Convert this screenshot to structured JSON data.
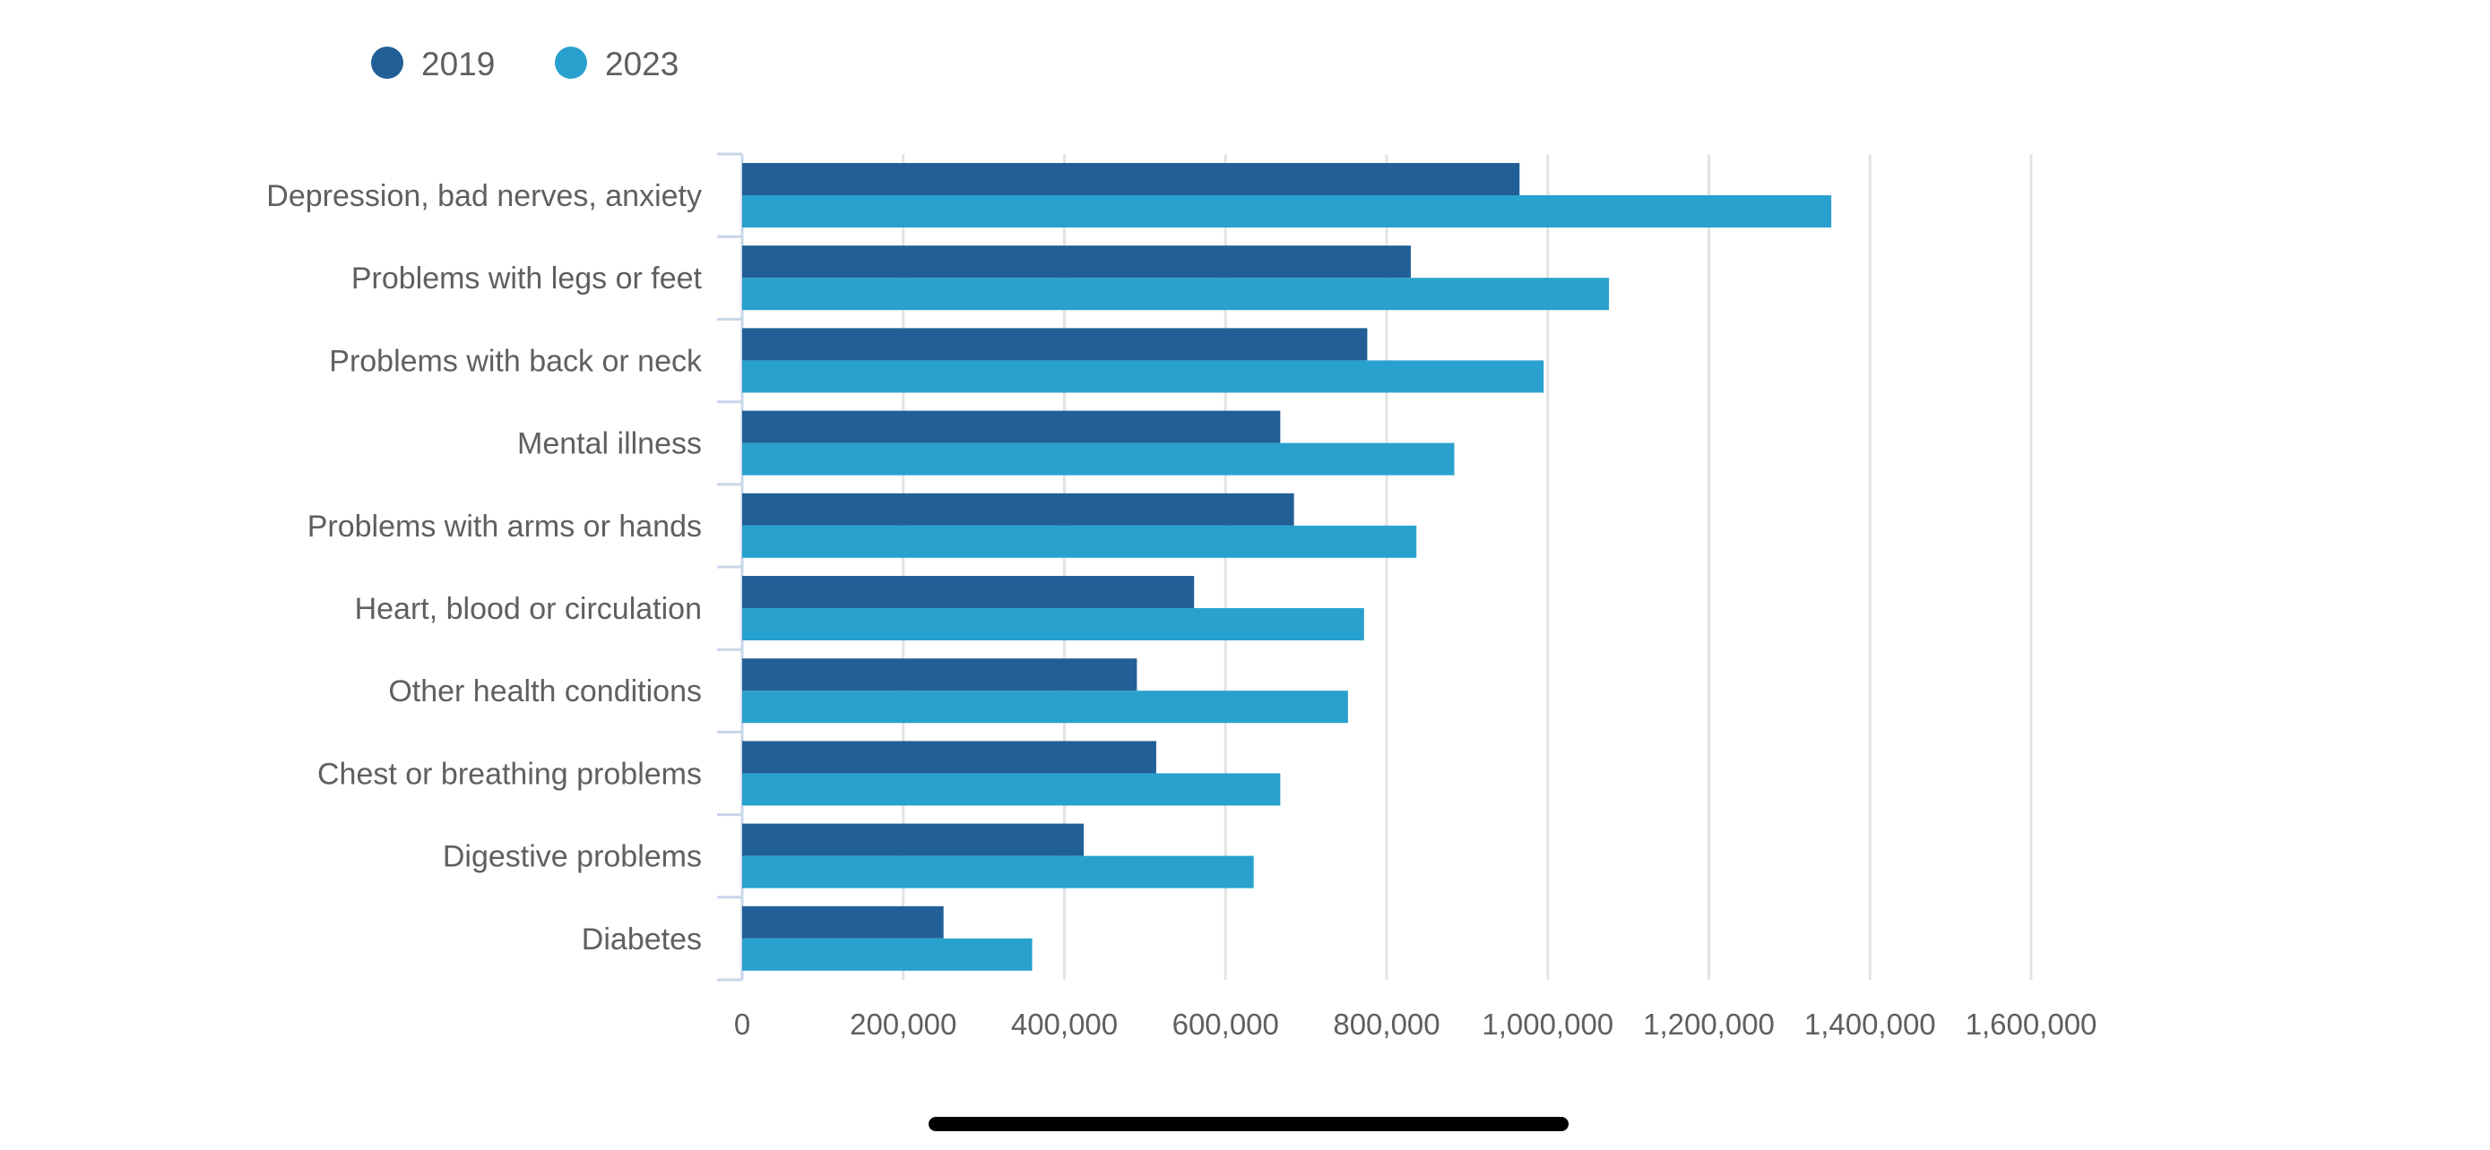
{
  "chart_data": {
    "type": "bar",
    "orientation": "horizontal",
    "title": "",
    "xlabel": "",
    "ylabel": "",
    "categories": [
      "Depression, bad nerves, anxiety",
      "Problems with legs or feet",
      "Problems with back or neck",
      "Mental illness",
      "Problems with arms or hands",
      "Heart, blood or circulation",
      "Other health conditions",
      "Chest or breathing problems",
      "Digestive problems",
      "Diabetes"
    ],
    "series": [
      {
        "name": "2019",
        "color": "#215f96",
        "values": [
          965000,
          830000,
          776000,
          668000,
          685000,
          561000,
          490000,
          514000,
          424000,
          250000
        ]
      },
      {
        "name": "2023",
        "color": "#29a1ce",
        "values": [
          1352000,
          1076000,
          995000,
          884000,
          837000,
          772000,
          752000,
          668000,
          635000,
          360000
        ]
      }
    ],
    "xlim": [
      0,
      1600000
    ],
    "xticks": [
      0,
      200000,
      400000,
      600000,
      800000,
      1000000,
      1200000,
      1400000,
      1600000
    ],
    "xtick_labels": [
      "0",
      "200,000",
      "400,000",
      "600,000",
      "800,000",
      "1,000,000",
      "1,200,000",
      "1,400,000",
      "1,600,000"
    ],
    "grid": true,
    "legend_position": "top-left"
  }
}
